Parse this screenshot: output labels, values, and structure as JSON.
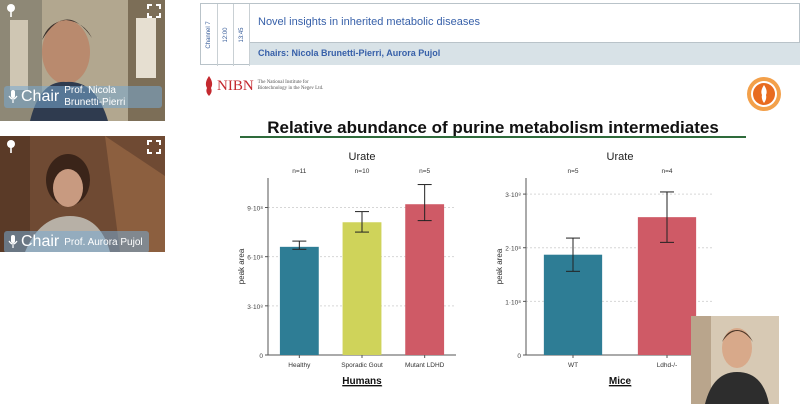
{
  "participants": [
    {
      "badge": "Chair",
      "name": "Prof. Nicola Brunetti-Pierri"
    },
    {
      "badge": "Chair",
      "name": "Prof. Aurora Pujol"
    }
  ],
  "session": {
    "channel": "Channel 7",
    "time_start": "12:00",
    "time_end": "13:45",
    "title": "Novel insights in inherited metabolic diseases",
    "chairs": "Chairs: Nicola Brunetti-Pierri, Aurora Pujol"
  },
  "logo": {
    "word": "NIBN",
    "tagline": "The National Institute for Biotechnology in the Negev Ltd."
  },
  "slide": {
    "title": "Relative abundance of purine metabolism intermediates"
  },
  "chart_data": [
    {
      "type": "bar",
      "title": "Urate",
      "group_label": "Humans",
      "ylabel": "peak area",
      "categories": [
        "Healthy",
        "Sporadic Gout",
        "Mutant LDHD"
      ],
      "n_labels": [
        "n=11",
        "n=10",
        "n=5"
      ],
      "values": [
        660000000.0,
        810000000.0,
        920000000.0
      ],
      "error_low": [
        645000000.0,
        750000000.0,
        820000000.0
      ],
      "error_high": [
        695000000.0,
        875000000.0,
        1040000000.0
      ],
      "colors": [
        "#2e7d95",
        "#cfd35a",
        "#cf5a66"
      ],
      "yticks": [
        "0",
        "3·10⁸",
        "6·10⁸",
        "9·10⁸"
      ],
      "ytick_values": [
        0,
        300000000.0,
        600000000.0,
        900000000.0
      ],
      "ylim": [
        0,
        1080000000.0
      ],
      "grid": true
    },
    {
      "type": "bar",
      "title": "Urate",
      "group_label": "Mice",
      "ylabel": "peak area",
      "categories": [
        "WT",
        "Ldhd-/-"
      ],
      "n_labels": [
        "n=5",
        "n=4"
      ],
      "values": [
        187000000.0,
        257000000.0
      ],
      "error_low": [
        156000000.0,
        210000000.0
      ],
      "error_high": [
        218000000.0,
        304000000.0
      ],
      "colors": [
        "#2e7d95",
        "#cf5a66"
      ],
      "yticks": [
        "0",
        "1·10⁸",
        "2·10⁸",
        "3·10⁸"
      ],
      "ytick_values": [
        0,
        100000000.0,
        200000000.0,
        300000000.0
      ],
      "ylim": [
        0,
        330000000.0
      ],
      "grid": true
    }
  ]
}
